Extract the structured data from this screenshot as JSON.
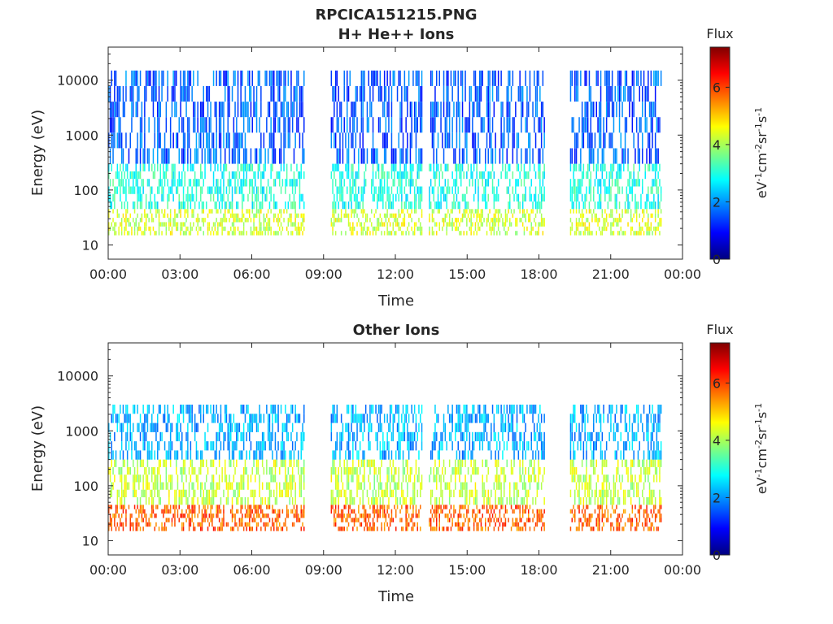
{
  "figure_title": "RPCICA151215.PNG",
  "chart_data": [
    {
      "type": "heatmap",
      "title": "H+ He++ Ions",
      "xlabel": "Time",
      "ylabel": "Energy (eV)",
      "x_ticks": [
        "00:00",
        "03:00",
        "06:00",
        "09:00",
        "12:00",
        "15:00",
        "18:00",
        "21:00",
        "00:00"
      ],
      "x_range_hours": [
        0,
        24
      ],
      "y_scale": "log",
      "y_range": [
        5.5,
        40000
      ],
      "y_ticks": [
        10,
        100,
        1000,
        10000
      ],
      "y_tick_labels": [
        "10",
        "100",
        "1000",
        "10000"
      ],
      "colorbar": {
        "label_top": "Flux",
        "units": "eV-1cm-2sr-1s-1",
        "range": [
          0,
          7.4
        ],
        "ticks": [
          0,
          2,
          4,
          6
        ],
        "colormap": "jet"
      },
      "data_coverage_hours": [
        [
          0,
          8.2
        ],
        [
          9.3,
          13.1
        ],
        [
          13.4,
          18.2
        ],
        [
          19.3,
          23.1
        ]
      ],
      "data_gaps_hours": [
        [
          8.2,
          9.3
        ],
        [
          18.2,
          19.3
        ]
      ],
      "energy_bands": [
        {
          "energy_eV": [
            15,
            45
          ],
          "flux_log": 4.3
        },
        {
          "energy_eV": [
            45,
            300
          ],
          "flux_log": 3.0
        },
        {
          "energy_eV": [
            300,
            15000
          ],
          "flux_log": 1.6
        }
      ],
      "grid": false
    },
    {
      "type": "heatmap",
      "title": "Other Ions",
      "xlabel": "Time",
      "ylabel": "Energy (eV)",
      "x_ticks": [
        "00:00",
        "03:00",
        "06:00",
        "09:00",
        "12:00",
        "15:00",
        "18:00",
        "21:00",
        "00:00"
      ],
      "x_range_hours": [
        0,
        24
      ],
      "y_scale": "log",
      "y_range": [
        5.5,
        40000
      ],
      "y_ticks": [
        10,
        100,
        1000,
        10000
      ],
      "y_tick_labels": [
        "10",
        "100",
        "1000",
        "10000"
      ],
      "colorbar": {
        "label_top": "Flux",
        "units": "eV-1cm-2sr-1s-1",
        "range": [
          0,
          7.4
        ],
        "ticks": [
          0,
          2,
          4,
          6
        ],
        "colormap": "jet"
      },
      "data_coverage_hours": [
        [
          0,
          8.2
        ],
        [
          9.3,
          13.1
        ],
        [
          13.4,
          18.2
        ],
        [
          19.3,
          23.1
        ]
      ],
      "data_gaps_hours": [
        [
          8.2,
          9.3
        ],
        [
          18.2,
          19.3
        ]
      ],
      "energy_bands": [
        {
          "energy_eV": [
            15,
            45
          ],
          "flux_log": 5.8
        },
        {
          "energy_eV": [
            45,
            300
          ],
          "flux_log": 4.2
        },
        {
          "energy_eV": [
            300,
            3000
          ],
          "flux_log": 2.2
        }
      ],
      "grid": false
    }
  ]
}
